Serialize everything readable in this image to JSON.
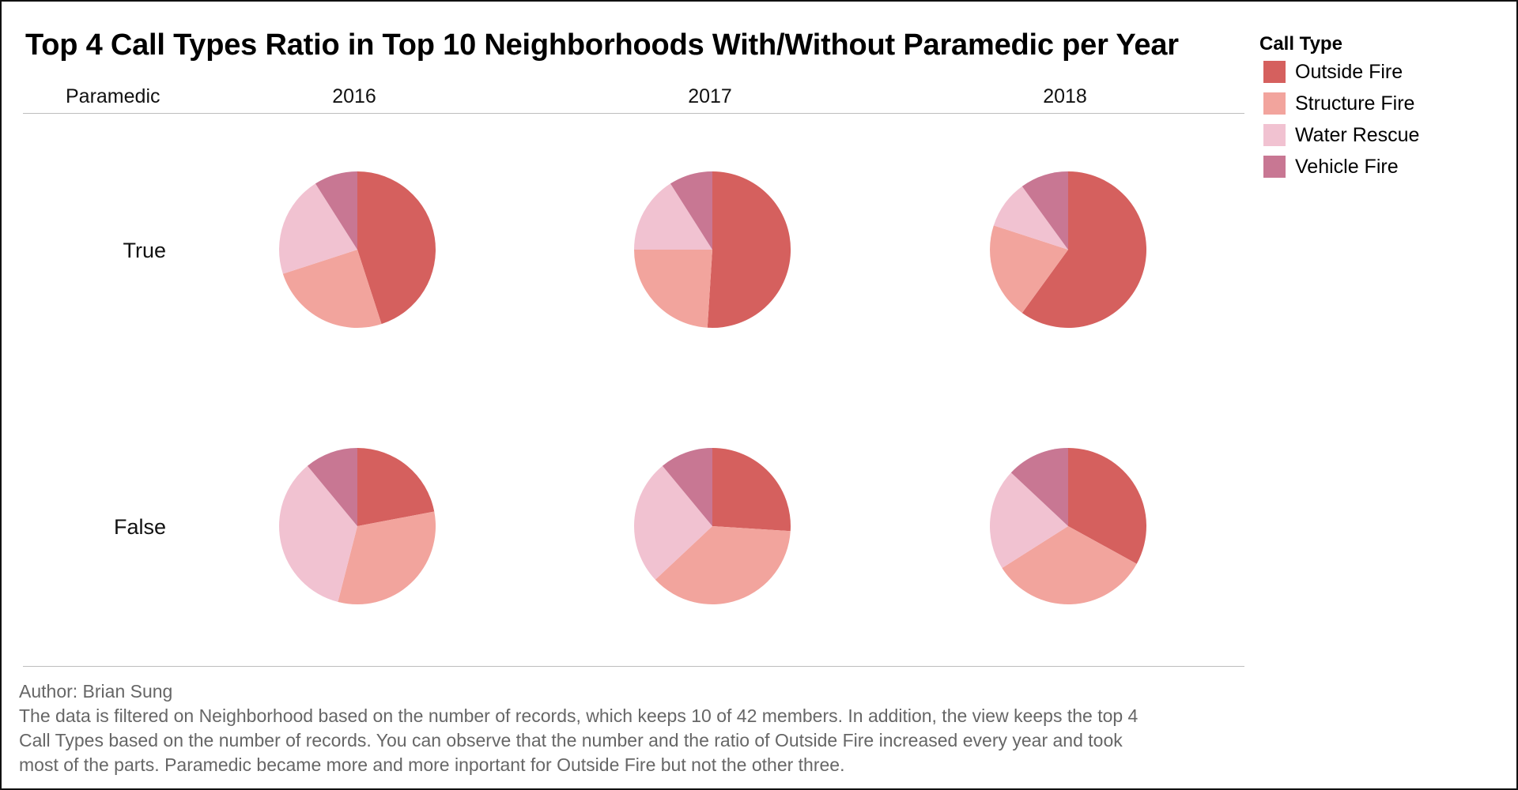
{
  "title": "Top 4 Call Types Ratio in Top 10 Neighborhoods With/Without Paramedic per Year",
  "row_header": "Paramedic",
  "columns": [
    "2016",
    "2017",
    "2018"
  ],
  "rows": [
    "True",
    "False"
  ],
  "legend": {
    "title": "Call Type",
    "items": [
      {
        "label": "Outside Fire",
        "color": "#D5605E"
      },
      {
        "label": "Structure Fire",
        "color": "#F2A49D"
      },
      {
        "label": "Water Rescue",
        "color": "#F1C2D1"
      },
      {
        "label": "Vehicle Fire",
        "color": "#C87793"
      }
    ]
  },
  "footer": {
    "author": "Author: Brian Sung",
    "lines": [
      "The data is filtered on Neighborhood based on the number of records, which keeps 10 of 42 members. In addition, the view keeps the top 4",
      "Call Types based on the number of records. You can observe that the number and the ratio of Outside Fire increased every year and took",
      "most of the parts. Paramedic became more and more inportant for Outside Fire but not the other three."
    ]
  },
  "chart_data": {
    "type": "pie",
    "categories": [
      "Outside Fire",
      "Structure Fire",
      "Water Rescue",
      "Vehicle Fire"
    ],
    "grid": [
      {
        "paramedic": "True",
        "year": "2016",
        "values": [
          0.45,
          0.25,
          0.21,
          0.09
        ]
      },
      {
        "paramedic": "True",
        "year": "2017",
        "values": [
          0.51,
          0.24,
          0.16,
          0.09
        ]
      },
      {
        "paramedic": "True",
        "year": "2018",
        "values": [
          0.6,
          0.2,
          0.1,
          0.1
        ]
      },
      {
        "paramedic": "False",
        "year": "2016",
        "values": [
          0.22,
          0.32,
          0.35,
          0.11
        ]
      },
      {
        "paramedic": "False",
        "year": "2017",
        "values": [
          0.26,
          0.37,
          0.26,
          0.11
        ]
      },
      {
        "paramedic": "False",
        "year": "2018",
        "values": [
          0.33,
          0.33,
          0.21,
          0.13
        ]
      }
    ]
  }
}
